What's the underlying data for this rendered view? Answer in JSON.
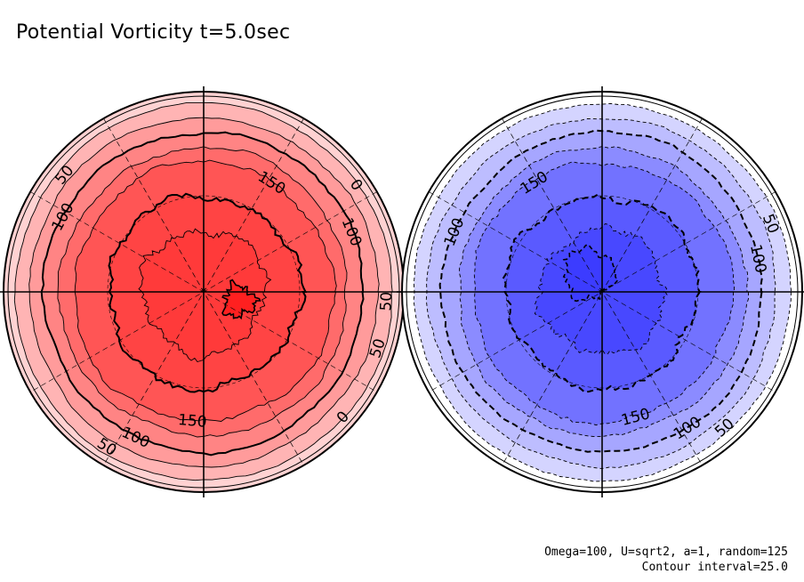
{
  "title": "Potential Vorticity t=5.0sec",
  "footnotes": {
    "params": "Omega=100, U=sqrt2, a=1, random=125",
    "interval": "Contour interval=25.0"
  },
  "chart_data": [
    {
      "type": "polar-contour",
      "hemisphere": "north",
      "contour_interval": 25.0,
      "fill_colors": [
        "#ffd2d2",
        "#ffb4b4",
        "#ff9b9b",
        "#ff8484",
        "#ff6b6b",
        "#ff5555",
        "#ff4444",
        "#ff3a3a",
        "#ff2020"
      ],
      "contour_levels": [
        0,
        25,
        50,
        75,
        100,
        125,
        150,
        175,
        200
      ],
      "contour_labels": [
        {
          "text": "50",
          "angle": 140
        },
        {
          "text": "100",
          "angle": 152
        },
        {
          "text": "150",
          "angle": 58
        },
        {
          "text": "0",
          "angle": 35
        },
        {
          "text": "100",
          "angle": 22
        },
        {
          "text": "50",
          "angle": -18
        },
        {
          "text": "50",
          "angle": -3
        },
        {
          "text": "0",
          "angle": -42
        },
        {
          "text": "150",
          "angle": -95
        },
        {
          "text": "100",
          "angle": -115
        },
        {
          "text": "50",
          "angle": -122
        }
      ]
    },
    {
      "type": "polar-contour",
      "hemisphere": "south",
      "contour_interval": 25.0,
      "fill_colors": [
        "#ffffff",
        "#d4d4ff",
        "#bdbdff",
        "#a6a6ff",
        "#8b8bff",
        "#7272ff",
        "#5a5aff",
        "#4848ff",
        "#3c3cff"
      ],
      "contour_levels": [
        0,
        -25,
        -50,
        -75,
        -100,
        -125,
        -150,
        -175,
        -200
      ],
      "contour_labels": [
        {
          "text": "150",
          "angle": 122
        },
        {
          "text": "100",
          "angle": 158
        },
        {
          "text": "50",
          "angle": 22
        },
        {
          "text": "100",
          "angle": 12
        },
        {
          "text": "150",
          "angle": -75
        },
        {
          "text": "100",
          "angle": -58
        },
        {
          "text": "50",
          "angle": -48
        }
      ]
    }
  ]
}
